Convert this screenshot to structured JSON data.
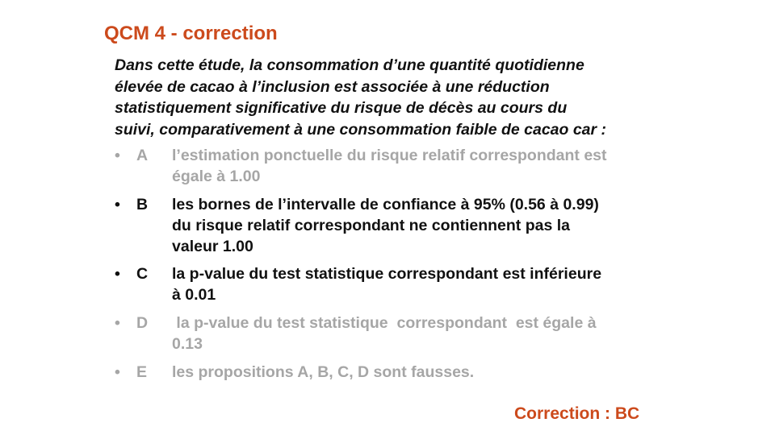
{
  "slide": {
    "title": "QCM 4 - correction",
    "question": {
      "lines": [
        "Dans cette étude, la consommation d’une quantité quotidienne",
        "élevée de cacao à l’inclusion  est associée à une réduction",
        "statistiquement significative  du risque de décès au cours du",
        "suivi, comparativement à une consommation faible de cacao car :"
      ]
    },
    "options": [
      {
        "bullet": "•",
        "letter": "A",
        "status": "incorrect",
        "lines": [
          "l’estimation  ponctuelle  du risque relatif  correspondant  est",
          "égale à 1.00"
        ]
      },
      {
        "bullet": "•",
        "letter": "B",
        "status": "correct",
        "lines": [
          "les bornes de l’intervalle  de confiance  à 95% (0.56 à 0.99)",
          "du risque relatif  correspondant  ne contiennent  pas la",
          "valeur 1.00"
        ]
      },
      {
        "bullet": "•",
        "letter": "C",
        "status": "correct",
        "lines": [
          "la p-value du test statistique  correspondant  est inférieure",
          "à 0.01"
        ]
      },
      {
        "bullet": "•",
        "letter": "D",
        "status": "incorrect",
        "lines": [
          " la p-value du test statistique  correspondant  est égale à",
          "0.13"
        ]
      },
      {
        "bullet": "•",
        "letter": "E",
        "status": "incorrect",
        "lines": [
          "les propositions  A, B, C, D sont fausses."
        ]
      }
    ],
    "answer": "Correction : BC",
    "colors": {
      "accent": "#cc4a1c",
      "correct_text": "#111111",
      "incorrect_text": "#a6a6a6"
    }
  }
}
